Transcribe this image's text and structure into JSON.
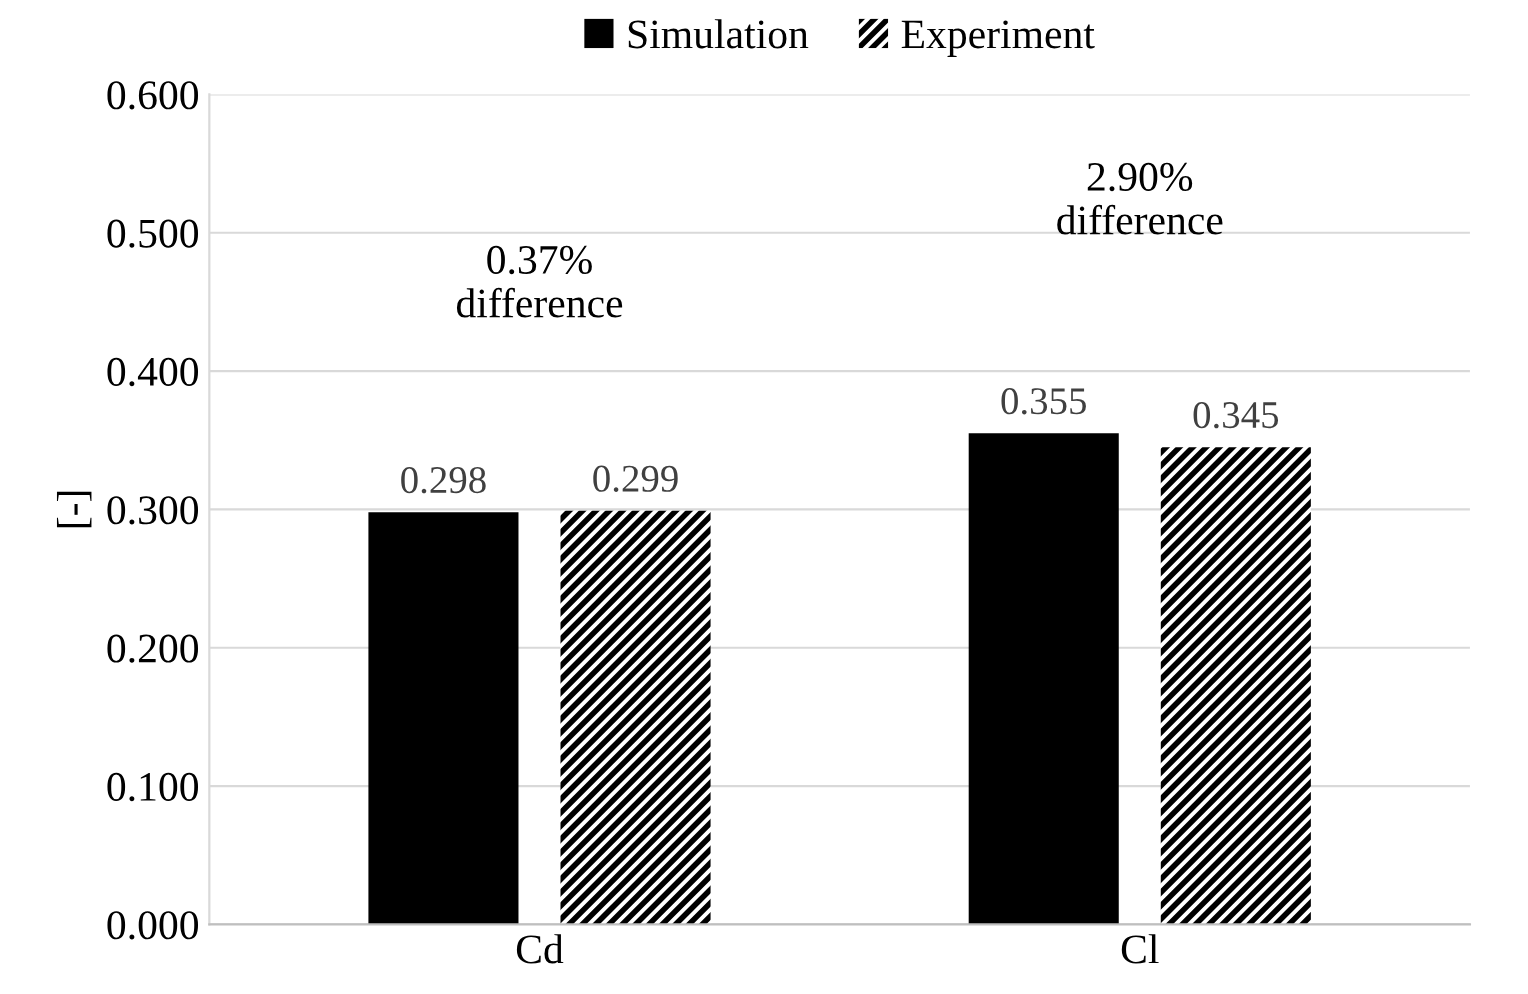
{
  "chart_data": {
    "type": "bar",
    "ylabel": "[-]",
    "categories": [
      "Cd",
      "Cl"
    ],
    "series": [
      {
        "name": "Simulation",
        "color": "#000000",
        "values": [
          0.298,
          0.355
        ]
      },
      {
        "name": "Experiment",
        "color": "#000000",
        "values": [
          0.299,
          0.345
        ]
      }
    ],
    "ylim": [
      0,
      0.6
    ],
    "yticks": [
      {
        "value": 0,
        "label": "0.000"
      },
      {
        "value": 0.1,
        "label": "0.100"
      },
      {
        "value": 0.2,
        "label": "0.200"
      },
      {
        "value": 0.3,
        "label": "0.300"
      },
      {
        "value": 0.4,
        "label": "0.400"
      },
      {
        "value": 0.5,
        "label": "0.500"
      },
      {
        "value": 0.6,
        "label": "0.600"
      }
    ],
    "grid": "y",
    "legend": "top",
    "data_labels": true,
    "annotations": [
      "0.37%\ndifference",
      "2.90%\ndifference"
    ]
  }
}
